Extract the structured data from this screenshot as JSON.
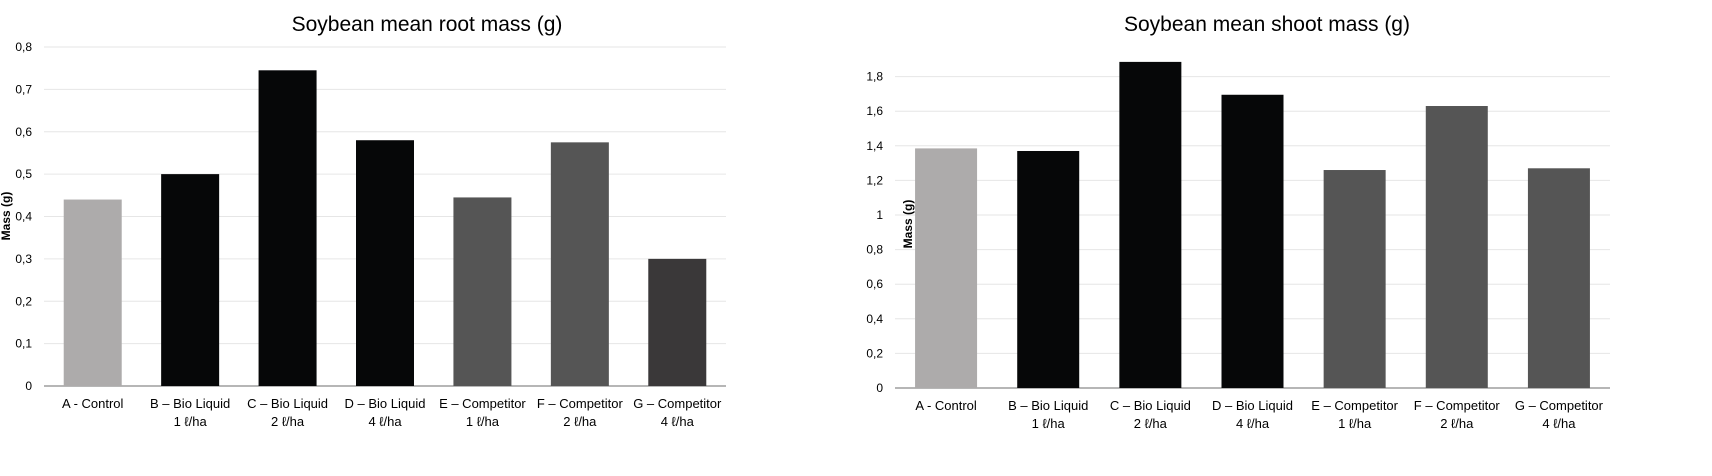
{
  "chart_data": [
    {
      "type": "bar",
      "title": "Soybean mean root mass (g)",
      "ylabel": "Mass (g)",
      "xlabel": "",
      "ylim": [
        0,
        0.8
      ],
      "yticks": [
        "0",
        "0,1",
        "0,2",
        "0,3",
        "0,4",
        "0,5",
        "0,6",
        "0,7",
        "0,8"
      ],
      "grid": true,
      "categories": [
        [
          "A - Control",
          ""
        ],
        [
          "B – Bio Liquid",
          "1 ℓ/ha"
        ],
        [
          "C – Bio Liquid",
          "2 ℓ/ha"
        ],
        [
          "D – Bio Liquid",
          "4 ℓ/ha"
        ],
        [
          "E – Competitor",
          "1 ℓ/ha"
        ],
        [
          "F – Competitor",
          "2 ℓ/ha"
        ],
        [
          "G – Competitor",
          "4 ℓ/ha"
        ]
      ],
      "values": [
        0.44,
        0.5,
        0.745,
        0.58,
        0.445,
        0.575,
        0.3
      ],
      "colors": [
        "#adabab",
        "#060708",
        "#060708",
        "#060708",
        "#555555",
        "#555555",
        "#3a3839"
      ]
    },
    {
      "type": "bar",
      "title": "Soybean mean shoot mass (g)",
      "ylabel": "Mass (g)",
      "xlabel": "",
      "ylim": [
        0,
        2.0
      ],
      "yticks": [
        "0",
        "0,2",
        "0,4",
        "0,6",
        "0,8",
        "1",
        "1,2",
        "1,4",
        "1,6",
        "1,8"
      ],
      "grid": true,
      "categories": [
        [
          "A - Control",
          ""
        ],
        [
          "B – Bio Liquid",
          "1 ℓ/ha"
        ],
        [
          "C – Bio Liquid",
          "2 ℓ/ha"
        ],
        [
          "D – Bio Liquid",
          "4 ℓ/ha"
        ],
        [
          "E – Competitor",
          "1 ℓ/ha"
        ],
        [
          "F – Competitor",
          "2 ℓ/ha"
        ],
        [
          "G – Competitor",
          "4 ℓ/ha"
        ]
      ],
      "values": [
        1.385,
        1.37,
        1.885,
        1.695,
        1.26,
        1.63,
        1.27
      ],
      "colors": [
        "#adabab",
        "#060708",
        "#060708",
        "#060708",
        "#555555",
        "#555555",
        "#555555"
      ]
    }
  ]
}
